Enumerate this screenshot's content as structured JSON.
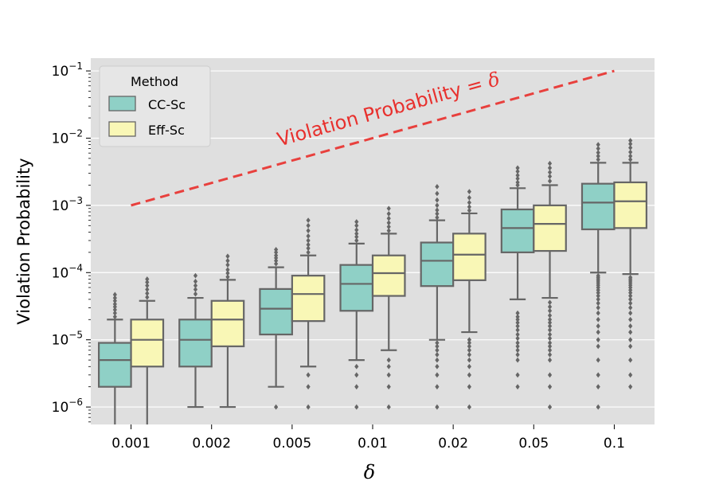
{
  "chart_data": {
    "type": "boxplot",
    "title": "",
    "xlabel": "δ",
    "ylabel": "Violation Probability",
    "yscale": "log",
    "ylim": [
      5.5e-07,
      0.155
    ],
    "grid": true,
    "categories": [
      "0.001",
      "0.002",
      "0.005",
      "0.01",
      "0.02",
      "0.05",
      "0.1"
    ],
    "y_ticks": [
      {
        "value": 1e-06,
        "base": "10",
        "exp": "−6"
      },
      {
        "value": 1e-05,
        "base": "10",
        "exp": "−5"
      },
      {
        "value": 0.0001,
        "base": "10",
        "exp": "−4"
      },
      {
        "value": 0.001,
        "base": "10",
        "exp": "−3"
      },
      {
        "value": 0.01,
        "base": "10",
        "exp": "−2"
      },
      {
        "value": 0.1,
        "base": "10",
        "exp": "−1"
      }
    ],
    "legend": {
      "title": "Method",
      "location": "upper-left"
    },
    "series": [
      {
        "name": "CC-Sc",
        "color": "#8fd0c6",
        "boxes": [
          {
            "q1": 2e-06,
            "median": 5e-06,
            "q3": 9e-06,
            "whislo": 4e-07,
            "whishi": 2e-05,
            "fliers": [
              2.2e-05,
              2.5e-05,
              2.8e-05,
              3.1e-05,
              3.4e-05,
              3.8e-05,
              4.2e-05,
              4.7e-05
            ]
          },
          {
            "q1": 4e-06,
            "median": 1e-05,
            "q3": 2e-05,
            "whislo": 1e-06,
            "whishi": 4.2e-05,
            "fliers": [
              4.8e-05,
              5.6e-05,
              6.4e-05,
              7.4e-05,
              9e-05
            ]
          },
          {
            "q1": 1.2e-05,
            "median": 2.9e-05,
            "q3": 5.7e-05,
            "whislo": 2e-06,
            "whishi": 0.00012,
            "fliers": [
              1e-06,
              0.000135,
              0.00015,
              0.000165,
              0.00018,
              0.0002,
              0.00022
            ]
          },
          {
            "q1": 2.7e-05,
            "median": 6.8e-05,
            "q3": 0.00013,
            "whislo": 5e-06,
            "whishi": 0.00027,
            "fliers": [
              1e-06,
              2e-06,
              3e-06,
              4e-06,
              0.0003,
              0.00034,
              0.00038,
              0.00043,
              0.0005,
              0.00057
            ]
          },
          {
            "q1": 6.3e-05,
            "median": 0.00015,
            "q3": 0.00028,
            "whislo": 1e-05,
            "whishi": 0.0006,
            "fliers": [
              1e-06,
              2e-06,
              3e-06,
              4e-06,
              5e-06,
              6e-06,
              7e-06,
              8e-06,
              9e-06,
              0.00066,
              0.00075,
              0.00085,
              0.001,
              0.0012,
              0.0015,
              0.0019
            ]
          },
          {
            "q1": 0.0002,
            "median": 0.00046,
            "q3": 0.00087,
            "whislo": 4e-05,
            "whishi": 0.0018,
            "fliers": [
              2e-06,
              3e-06,
              5e-06,
              6e-06,
              7e-06,
              8e-06,
              9e-06,
              1.05e-05,
              1.2e-05,
              1.4e-05,
              1.6e-05,
              1.8e-05,
              2e-05,
              2.2e-05,
              2.5e-05,
              0.002,
              0.0022,
              0.0025,
              0.0028,
              0.0032,
              0.0036
            ]
          },
          {
            "q1": 0.00044,
            "median": 0.0011,
            "q3": 0.0021,
            "whislo": 0.0001,
            "whishi": 0.0043,
            "fliers": [
              1e-06,
              2e-06,
              3e-06,
              5e-06,
              8e-06,
              1e-05,
              1.3e-05,
              1.6e-05,
              2e-05,
              2.5e-05,
              3e-05,
              3.5e-05,
              4e-05,
              4.5e-05,
              5e-05,
              5.5e-05,
              6e-05,
              6.5e-05,
              7e-05,
              7.5e-05,
              8e-05,
              8.5e-05,
              9e-05,
              0.0048,
              0.0054,
              0.0061,
              0.007,
              0.008
            ]
          }
        ]
      },
      {
        "name": "Eff-Sc",
        "color": "#f9f7b6",
        "boxes": [
          {
            "q1": 4e-06,
            "median": 1e-05,
            "q3": 2e-05,
            "whislo": 4e-07,
            "whishi": 3.8e-05,
            "fliers": [
              4.3e-05,
              4.9e-05,
              5.6e-05,
              6.4e-05,
              7.2e-05,
              8e-05
            ]
          },
          {
            "q1": 8e-06,
            "median": 2e-05,
            "q3": 3.8e-05,
            "whislo": 1e-06,
            "whishi": 7.8e-05,
            "fliers": [
              8.6e-05,
              9.8e-05,
              0.00011,
              0.00013,
              0.00015,
              0.000175
            ]
          },
          {
            "q1": 1.9e-05,
            "median": 4.8e-05,
            "q3": 9e-05,
            "whislo": 4e-06,
            "whishi": 0.00018,
            "fliers": [
              1e-06,
              2e-06,
              3e-06,
              0.0002,
              0.00023,
              0.00026,
              0.0003,
              0.00035,
              0.00042,
              0.0005,
              0.0006
            ]
          },
          {
            "q1": 4.5e-05,
            "median": 9.8e-05,
            "q3": 0.00018,
            "whislo": 7e-06,
            "whishi": 0.00038,
            "fliers": [
              1e-06,
              2e-06,
              3e-06,
              4e-06,
              5e-06,
              0.00042,
              0.00048,
              0.00055,
              0.00064,
              0.00075,
              0.0009
            ]
          },
          {
            "q1": 7.7e-05,
            "median": 0.000185,
            "q3": 0.00038,
            "whislo": 1.3e-05,
            "whishi": 0.00076,
            "fliers": [
              1e-06,
              2e-06,
              3e-06,
              4e-06,
              5e-06,
              6e-06,
              7e-06,
              8e-06,
              9e-06,
              1e-05,
              0.00084,
              0.00095,
              0.0011,
              0.0013,
              0.0016
            ]
          },
          {
            "q1": 0.00021,
            "median": 0.00053,
            "q3": 0.001,
            "whislo": 4.2e-05,
            "whishi": 0.002,
            "fliers": [
              1e-06,
              2e-06,
              3e-06,
              5e-06,
              6e-06,
              7e-06,
              8e-06,
              9e-06,
              1.05e-05,
              1.2e-05,
              1.4e-05,
              1.6e-05,
              1.8e-05,
              2e-05,
              2.3e-05,
              2.7e-05,
              3.1e-05,
              3.6e-05,
              0.0023,
              0.0027,
              0.0031,
              0.0036,
              0.0042
            ]
          },
          {
            "q1": 0.00046,
            "median": 0.00115,
            "q3": 0.0022,
            "whislo": 9.5e-05,
            "whishi": 0.0043,
            "fliers": [
              2e-06,
              3e-06,
              5e-06,
              8e-06,
              1e-05,
              1.3e-05,
              1.6e-05,
              2e-05,
              2.5e-05,
              3e-05,
              3.5e-05,
              4e-05,
              4.5e-05,
              5e-05,
              5.5e-05,
              6e-05,
              6.5e-05,
              7e-05,
              7.5e-05,
              8e-05,
              8.5e-05,
              0.0048,
              0.0054,
              0.0062,
              0.0072,
              0.0082,
              0.0092
            ]
          }
        ]
      }
    ],
    "reference_line": {
      "label": "Violation Probability = δ",
      "label_text": "Violation Probability = ",
      "label_symbol": "δ",
      "from": {
        "category_index": 0,
        "y": 0.001
      },
      "to": {
        "category_index": 6,
        "y": 0.1
      },
      "color": "#e8403d",
      "style": "dashed"
    }
  }
}
